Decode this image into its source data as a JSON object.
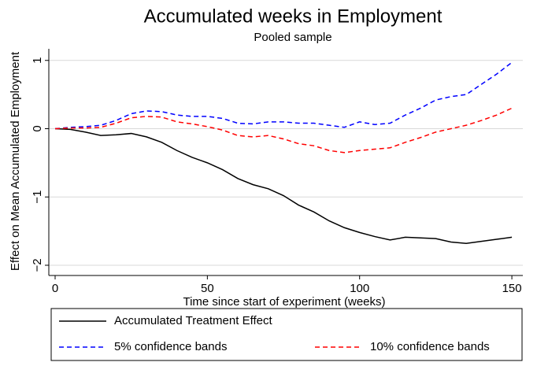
{
  "chart_data": {
    "type": "line",
    "title": "Accumulated weeks in Employment",
    "subtitle": "Pooled sample",
    "x_label": "Time since start of experiment (weeks)",
    "y_label": "Effect on Mean Accumulated Employment",
    "x": [
      0,
      5,
      10,
      15,
      20,
      25,
      30,
      35,
      40,
      45,
      50,
      55,
      60,
      65,
      70,
      75,
      80,
      85,
      90,
      95,
      100,
      105,
      110,
      115,
      120,
      125,
      130,
      135,
      140,
      145,
      150
    ],
    "series": [
      {
        "name": "Accumulated Treatment Effect",
        "color": "#000000",
        "dash": "solid",
        "values": [
          0,
          -0.01,
          -0.05,
          -0.1,
          -0.09,
          -0.07,
          -0.12,
          -0.2,
          -0.32,
          -0.42,
          -0.5,
          -0.6,
          -0.73,
          -0.82,
          -0.88,
          -0.98,
          -1.12,
          -1.22,
          -1.35,
          -1.45,
          -1.52,
          -1.58,
          -1.63,
          -1.59,
          -1.6,
          -1.61,
          -1.66,
          -1.68,
          -1.65,
          -1.62,
          -1.59
        ]
      },
      {
        "name": "5% confidence bands",
        "color": "#0000ff",
        "dash": "dashed",
        "values": [
          0,
          0.02,
          0.03,
          0.05,
          0.12,
          0.22,
          0.26,
          0.25,
          0.2,
          0.18,
          0.18,
          0.15,
          0.08,
          0.07,
          0.1,
          0.1,
          0.08,
          0.08,
          0.05,
          0.02,
          0.1,
          0.06,
          0.08,
          0.2,
          0.3,
          0.42,
          0.47,
          0.5,
          0.65,
          0.8,
          0.97
        ]
      },
      {
        "name": "10% confidence bands",
        "color": "#ff0000",
        "dash": "dashed",
        "values": [
          0,
          0.01,
          0.01,
          0.02,
          0.08,
          0.16,
          0.18,
          0.17,
          0.1,
          0.07,
          0.03,
          -0.02,
          -0.1,
          -0.12,
          -0.1,
          -0.15,
          -0.22,
          -0.25,
          -0.32,
          -0.35,
          -0.32,
          -0.3,
          -0.28,
          -0.2,
          -0.13,
          -0.05,
          0,
          0.05,
          0.12,
          0.2,
          0.3
        ]
      }
    ],
    "xlim": [
      -2.07,
      153.6
    ],
    "ylim": [
      -2.15,
      1.17
    ],
    "xticks": [
      0,
      50,
      100,
      150
    ],
    "yticks": [
      {
        "value": -2,
        "label": "−2"
      },
      {
        "value": -1,
        "label": "−1"
      },
      0,
      1
    ],
    "grid": true,
    "legend": "bottom"
  }
}
